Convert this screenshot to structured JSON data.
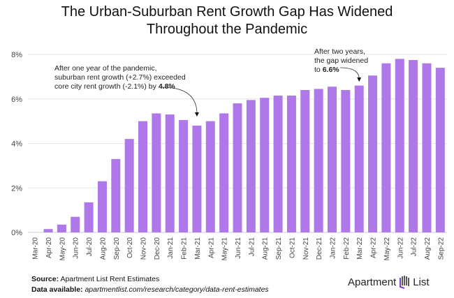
{
  "chart_data": {
    "type": "bar",
    "title": "The Urban-Suburban Rent Growth Gap Has Widened Throughout the Pandemic",
    "title_lines": [
      "The Urban-Suburban Rent Growth Gap Has Widened",
      "Throughout the Pandemic"
    ],
    "categories": [
      "Mar-20",
      "Apr-20",
      "May-20",
      "Jun-20",
      "Jul-20",
      "Aug-20",
      "Sep-20",
      "Oct-20",
      "Nov-20",
      "Dec-20",
      "Jan-21",
      "Feb-21",
      "Mar-21",
      "Apr-21",
      "May-21",
      "Jun-21",
      "Jul-21",
      "Aug-21",
      "Sep-21",
      "Oct-21",
      "Nov-21",
      "Dec-21",
      "Jan-22",
      "Feb-22",
      "Mar-22",
      "Apr-22",
      "May-22",
      "Jun-22",
      "Jul-22",
      "Aug-22",
      "Sep-22"
    ],
    "values": [
      0,
      0.15,
      0.35,
      0.7,
      1.35,
      2.3,
      3.3,
      4.2,
      5.0,
      5.35,
      5.3,
      5.05,
      4.8,
      5.0,
      5.35,
      5.8,
      5.95,
      6.05,
      6.15,
      6.15,
      6.4,
      6.45,
      6.55,
      6.4,
      6.6,
      7.05,
      7.6,
      7.8,
      7.75,
      7.6,
      7.4
    ],
    "ylim": [
      0,
      8
    ],
    "yticks": [
      "0%",
      "2%",
      "4%",
      "6%",
      "8%"
    ],
    "xlabel": "",
    "ylabel": "",
    "grid": true,
    "bar_color": "#ae78e8",
    "annotations": [
      {
        "lines": [
          "After one year of the pandemic,",
          "suburban rent growth (+2.7%) exceeded",
          "core city rent growth (-2.1%) by "
        ],
        "bold": "4.8%",
        "target": "Mar-21"
      },
      {
        "lines": [
          "After two years,",
          "the gap widened",
          "to "
        ],
        "bold": "6.6%",
        "target": "Mar-22"
      }
    ]
  },
  "footer": {
    "source_label": "Source:",
    "source_text": "Apartment List Rent Estimates",
    "data_label": "Data available:",
    "data_text": "apartmentlist.com/research/category/data-rent-estimates"
  },
  "logo": {
    "left": "Apartment",
    "right": "List"
  }
}
